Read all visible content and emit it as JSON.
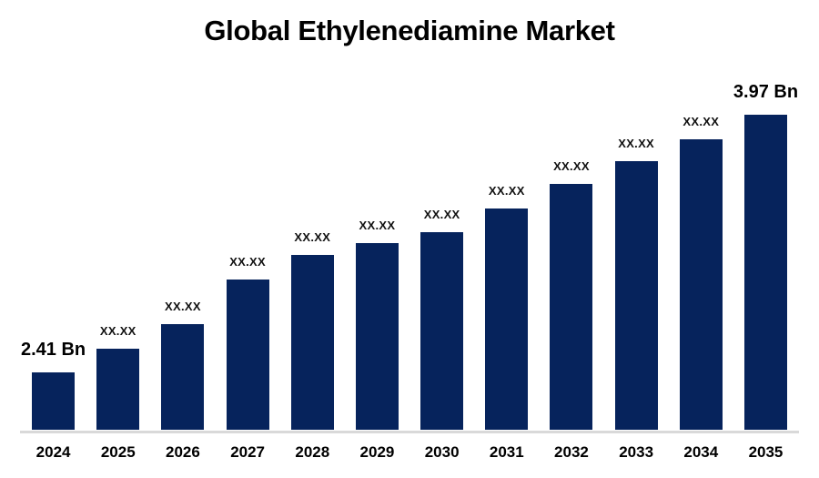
{
  "colors": {
    "bar": "#06235c",
    "axis_line": "#d9d9d9",
    "title_text": "#000000",
    "label_text": "#111111"
  },
  "chart_data": {
    "type": "bar",
    "title": "Global Ethylenediamine Market",
    "categories": [
      "2024",
      "2025",
      "2026",
      "2027",
      "2028",
      "2029",
      "2030",
      "2031",
      "2032",
      "2033",
      "2034",
      "2035"
    ],
    "values": [
      2.41,
      2.55,
      2.7,
      2.97,
      3.12,
      3.19,
      3.26,
      3.4,
      3.55,
      3.69,
      3.82,
      3.97
    ],
    "values_note": "middle values estimated from bar heights; on-screen they are masked as XX.XX",
    "bar_labels": [
      "2.41 Bn",
      "XX.XX",
      "XX.XX",
      "XX.XX",
      "XX.XX",
      "XX.XX",
      "XX.XX",
      "XX.XX",
      "XX.XX",
      "XX.XX",
      "XX.XX",
      "3.97 Bn"
    ],
    "unit": "Bn",
    "first_value_label": "2.41 Bn",
    "last_value_label": "3.97 Bn",
    "xlabel": "",
    "ylabel": "",
    "y_min_implied": 2.06,
    "y_max": 3.97,
    "y_axis_visible": false,
    "gridlines": false,
    "legend": false,
    "legend_position": "none"
  }
}
